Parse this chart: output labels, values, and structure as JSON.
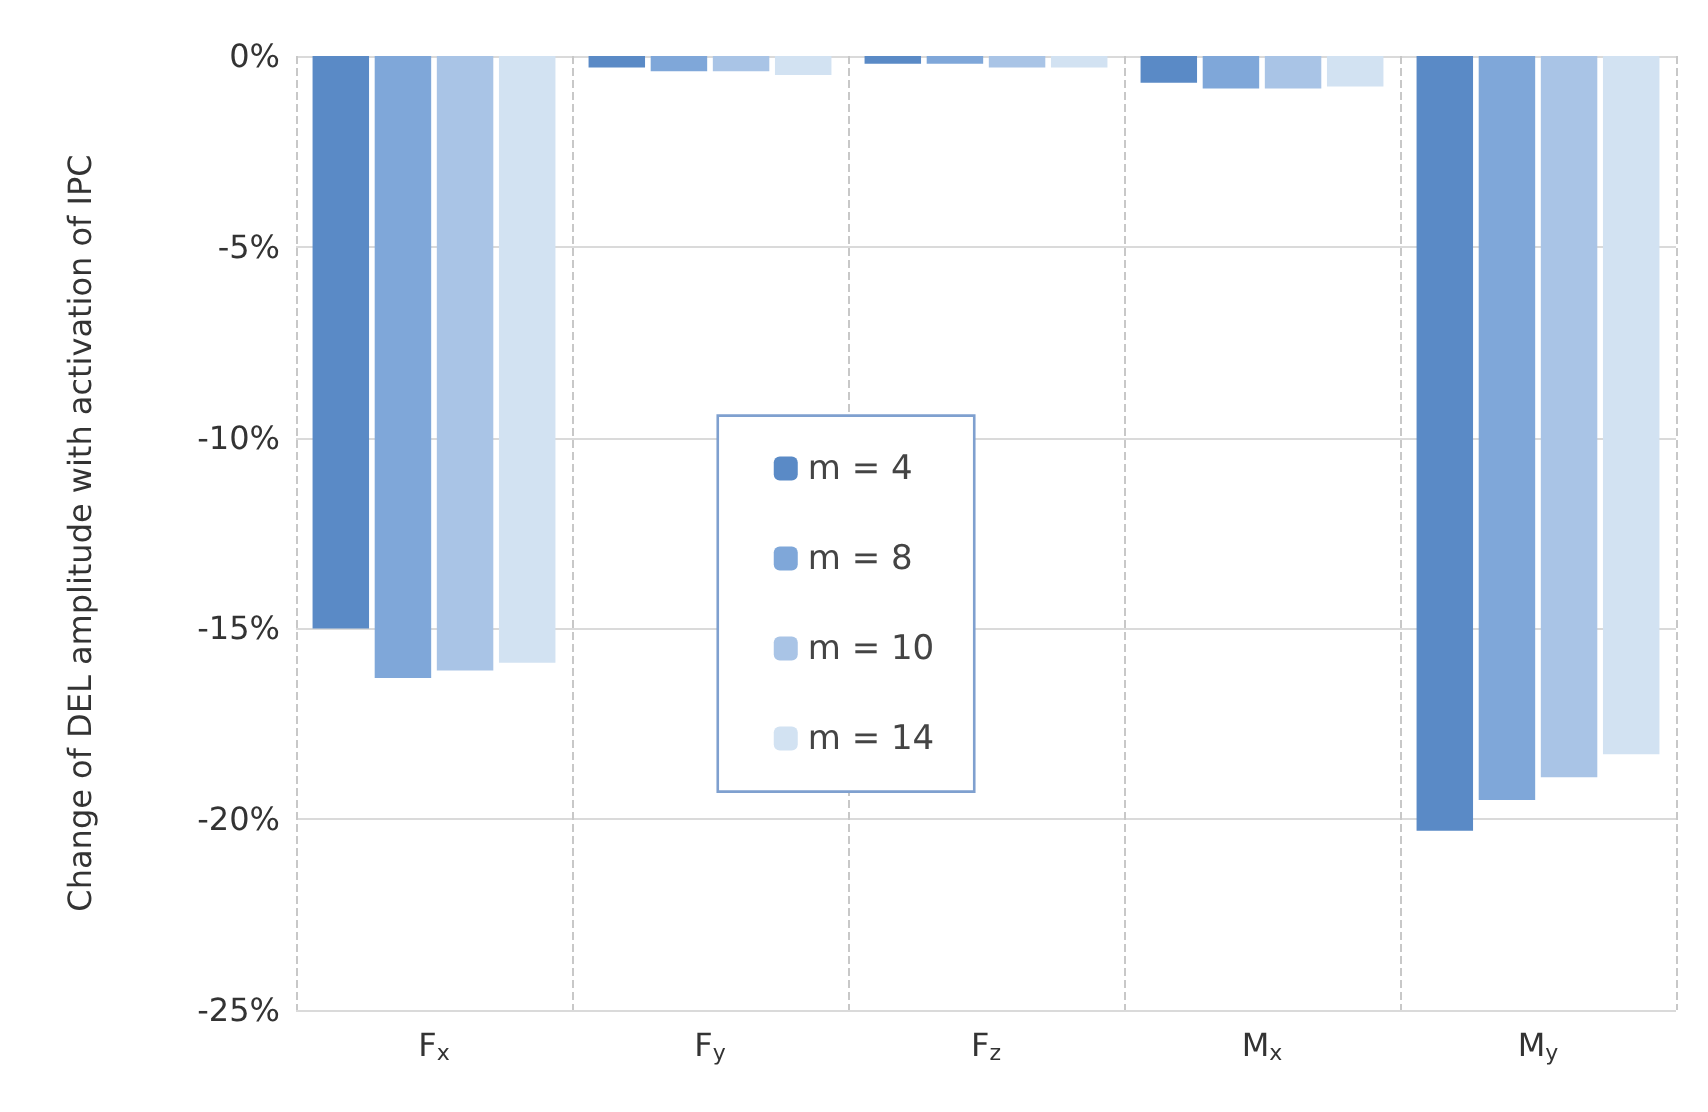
{
  "chart_data": {
    "type": "bar",
    "ylabel": "Change of DEL amplitude with activation of IPC",
    "categories": [
      "F$_{x}$",
      "F$_{y}$",
      "F$_{z}$",
      "M$_{x}$",
      "M$_{y}$"
    ],
    "series": [
      {
        "name": "m = 4",
        "color": "#5a8ac6",
        "values": [
          -15.0,
          -0.3,
          -0.2,
          -0.7,
          -20.3
        ]
      },
      {
        "name": "m = 8",
        "color": "#7fa7d9",
        "values": [
          -16.3,
          -0.4,
          -0.2,
          -0.85,
          -19.5
        ]
      },
      {
        "name": "m = 10",
        "color": "#a9c4e6",
        "values": [
          -16.1,
          -0.4,
          -0.3,
          -0.85,
          -18.9
        ]
      },
      {
        "name": "m = 14",
        "color": "#d2e2f2",
        "values": [
          -15.9,
          -0.5,
          -0.3,
          -0.8,
          -18.3
        ]
      }
    ],
    "ylim": [
      -25,
      0
    ],
    "yticks": [
      {
        "value": -25,
        "label": "-25%"
      },
      {
        "value": -20,
        "label": "-20%"
      },
      {
        "value": -15,
        "label": "-15%"
      },
      {
        "value": -10,
        "label": "-10%"
      },
      {
        "value": -5,
        "label": "-5%"
      },
      {
        "value": 0,
        "label": "0%"
      }
    ],
    "grid": true,
    "legend": "center"
  }
}
